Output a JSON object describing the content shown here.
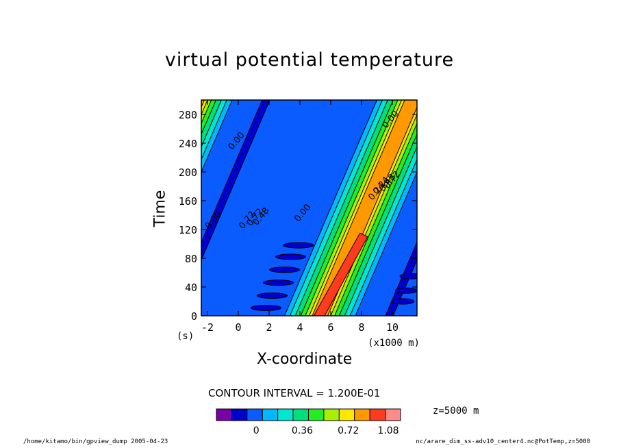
{
  "chart_data": {
    "type": "heatmap",
    "title": "virtual potential temperature",
    "xlabel": "X-coordinate",
    "ylabel": "Time",
    "x_unit": "(x1000 m)",
    "y_unit": "(s)",
    "xlim": [
      -2.4,
      11.6
    ],
    "ylim": [
      0,
      300
    ],
    "x_ticks": [
      "-2",
      "0",
      "2",
      "4",
      "6",
      "8",
      "10"
    ],
    "y_ticks": [
      "0",
      "40",
      "80",
      "120",
      "160",
      "200",
      "240",
      "280"
    ],
    "contour_interval_text": "CONTOUR INTERVAL = 1.200E-01",
    "level_text": "z=5000  m",
    "contour_labels": [
      "0.00",
      "0.00",
      "0.00",
      "0.00",
      "0.72",
      "0.72",
      "0.48",
      "0.24",
      "0.24",
      "0.48",
      "0.72"
    ],
    "colorbar": {
      "colors": [
        "#7a00a8",
        "#0000cc",
        "#0a5cff",
        "#00b8ff",
        "#00e6d2",
        "#00e07a",
        "#22ee22",
        "#a6f000",
        "#ffe600",
        "#ff9900",
        "#ff3b1f",
        "#ff8a8a"
      ],
      "tick_labels": [
        "0",
        "0.36",
        "0.72",
        "1.08"
      ]
    }
  },
  "footer": {
    "left": "/home/kitamo/bin/gpview_dump  2005-04-23",
    "right": "nc/arare_dim_ss-adv10_center4.nc@PotTemp,z=5000"
  }
}
